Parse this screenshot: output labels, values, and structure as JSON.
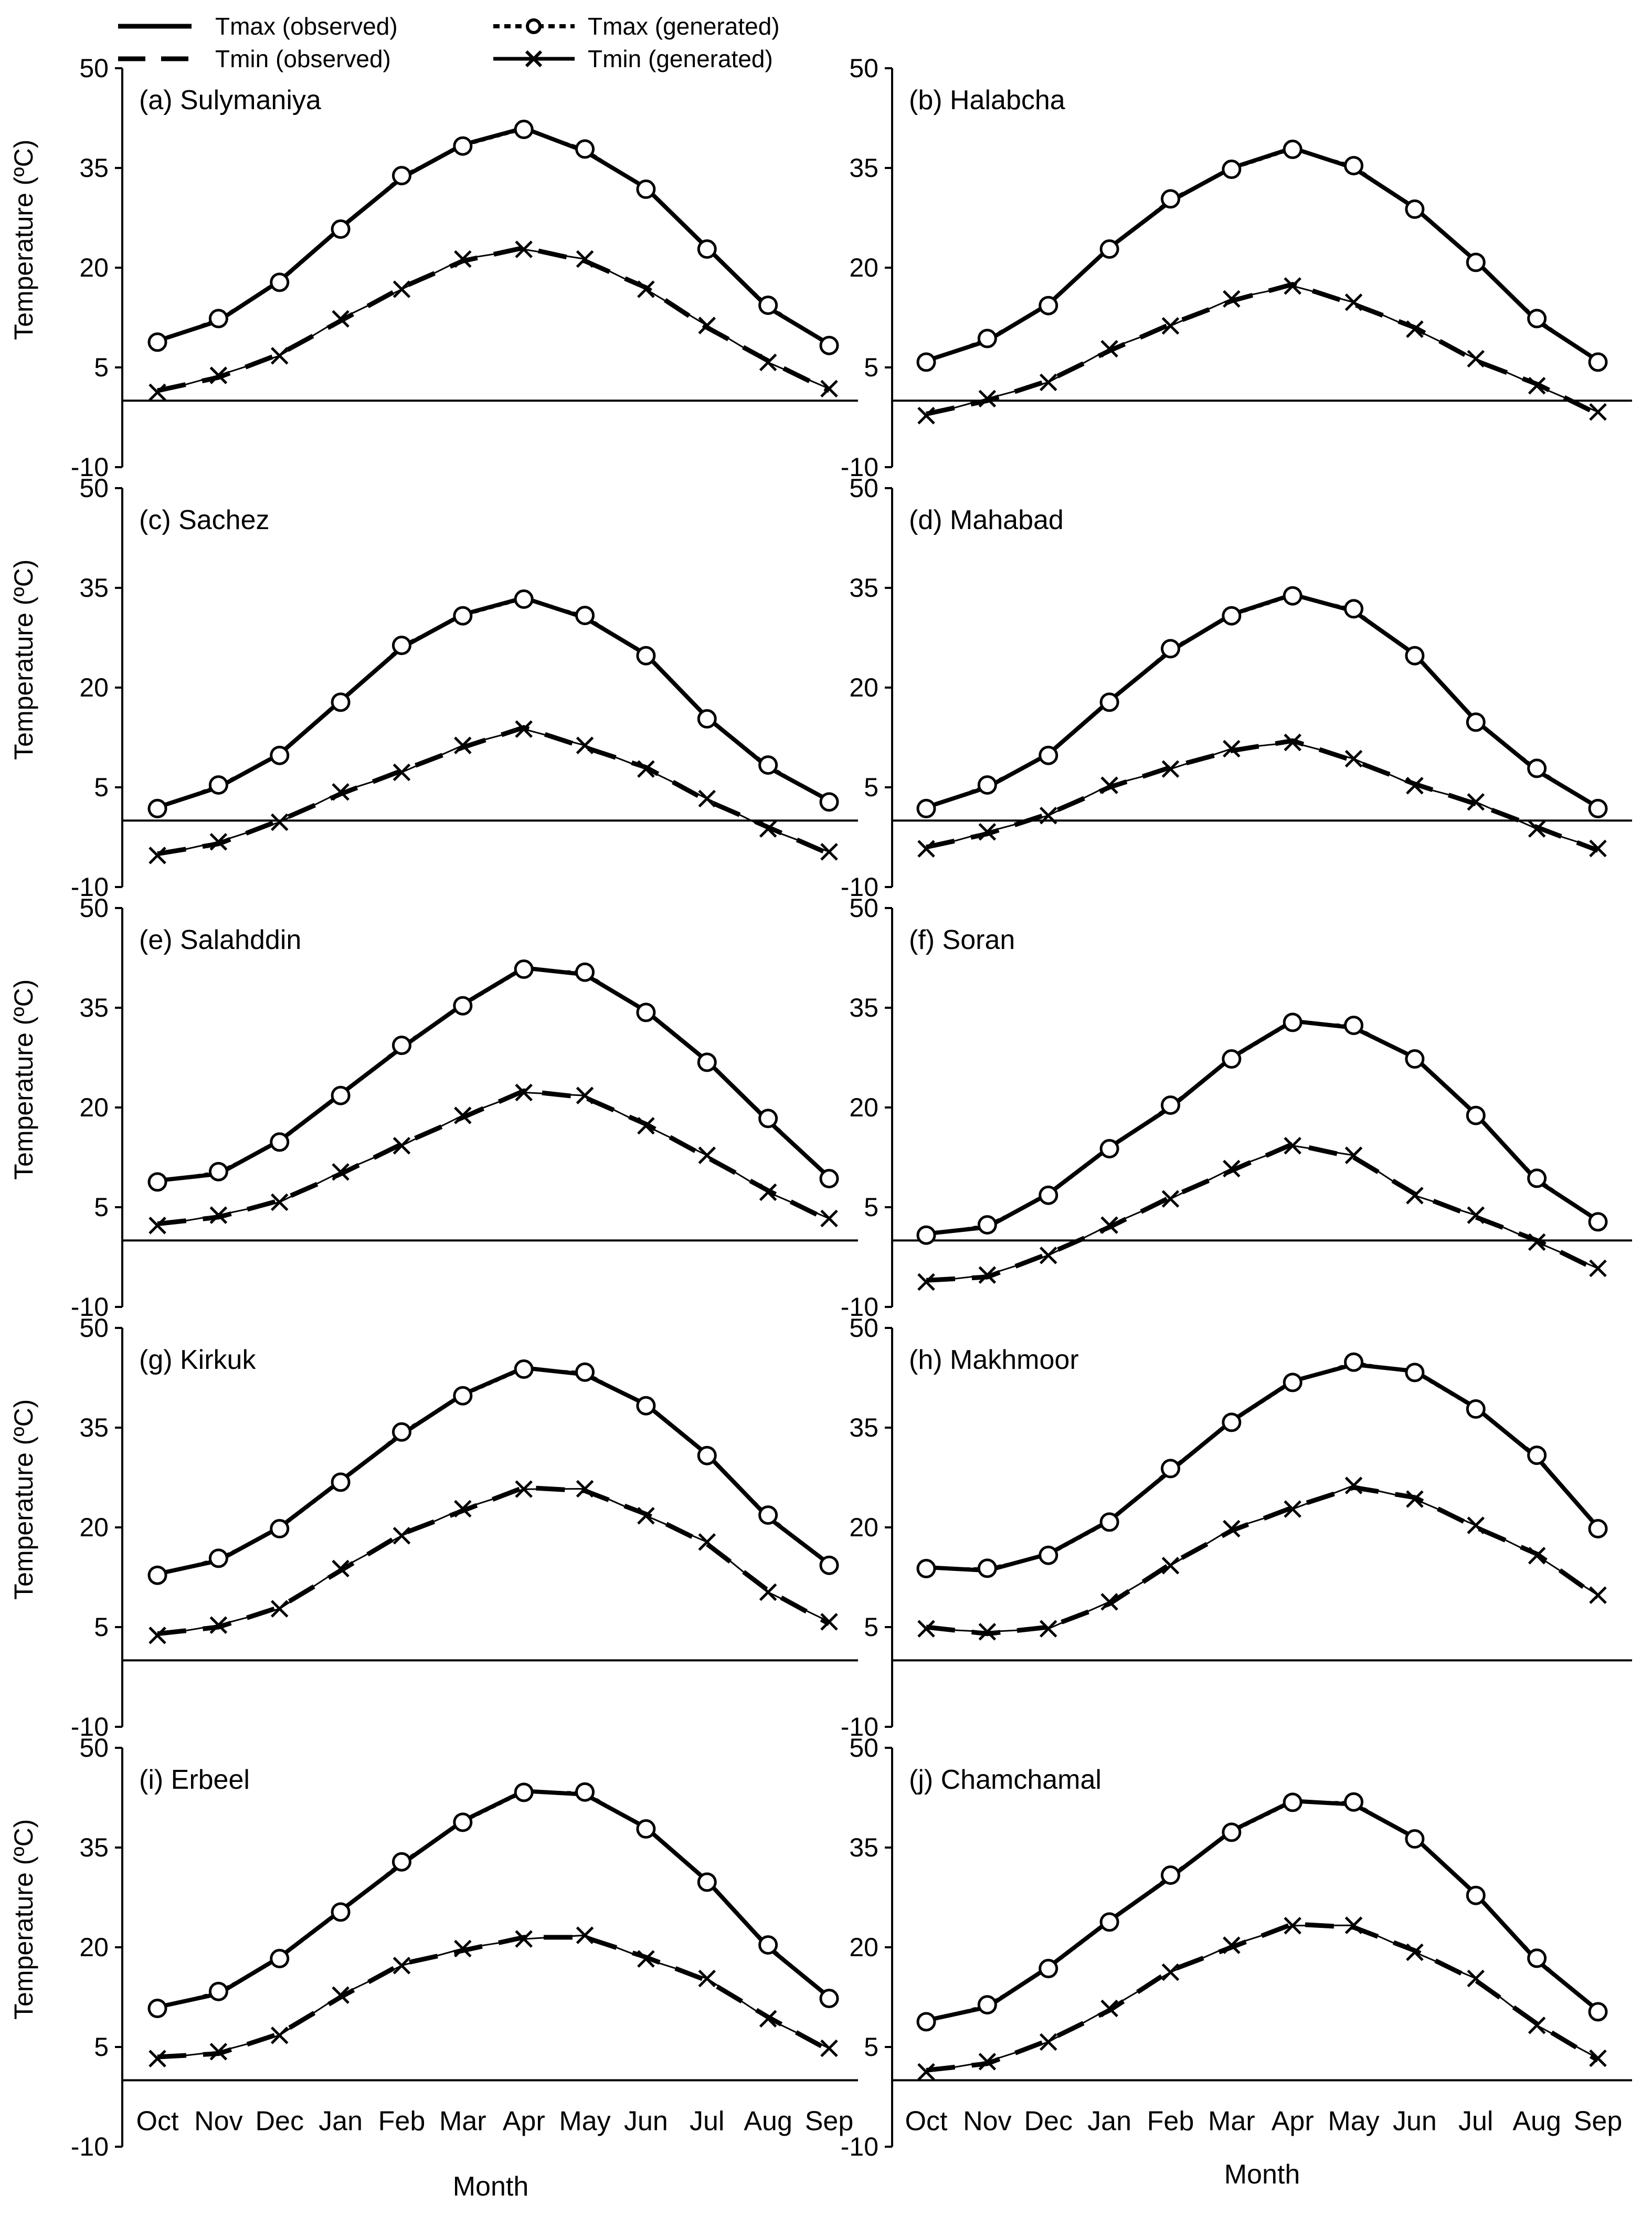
{
  "legend": [
    {
      "label": "Tmax (observed)",
      "style": "solid",
      "marker": "none"
    },
    {
      "label": "Tmax (generated)",
      "style": "dotted",
      "marker": "circle"
    },
    {
      "label": "Tmin (observed)",
      "style": "dashed",
      "marker": "none"
    },
    {
      "label": "Tmin (generated)",
      "style": "solid",
      "marker": "x"
    }
  ],
  "chart_data": {
    "type": "line",
    "categories": [
      "Oct",
      "Nov",
      "Dec",
      "Jan",
      "Feb",
      "Mar",
      "Apr",
      "May",
      "Jun",
      "Jul",
      "Aug",
      "Sep"
    ],
    "xlabel": "Month",
    "ylabel": "Temperature (ºC)",
    "ylim": [
      -10,
      50
    ],
    "yticks": [
      -10,
      5,
      20,
      35,
      50
    ],
    "line_color": "#000000",
    "panels": [
      {
        "title": "(a) Sulymaniya",
        "tmax": [
          9,
          12,
          18,
          26,
          33.5,
          38.5,
          41,
          37.5,
          32,
          23,
          14,
          8.5
        ],
        "tmin": [
          1.5,
          3.5,
          7,
          12,
          17,
          21,
          23,
          21,
          17,
          11,
          6,
          1.5
        ]
      },
      {
        "title": "(b) Halabcha",
        "tmax": [
          6,
          9,
          14.5,
          23,
          30,
          35,
          38,
          35,
          29,
          21,
          12,
          6
        ],
        "tmin": [
          -2,
          0,
          3,
          7.5,
          11.5,
          15,
          17.5,
          14.5,
          11,
          6,
          2.5,
          -2
        ]
      },
      {
        "title": "(c) Sachez",
        "tmax": [
          2,
          5,
          10,
          18,
          26,
          31,
          33.5,
          30.5,
          25,
          15.5,
          8,
          3
        ],
        "tmin": [
          -5,
          -3.5,
          0,
          4,
          7.5,
          11,
          14,
          11,
          8,
          3,
          -1,
          -5
        ]
      },
      {
        "title": "(d) Mahabad",
        "tmax": [
          2,
          5,
          10,
          18,
          25.5,
          31,
          34,
          31.5,
          25,
          15,
          7.5,
          2
        ],
        "tmin": [
          -4,
          -2,
          1,
          5,
          8,
          10.5,
          12,
          9,
          5.5,
          2.5,
          -1,
          -4.5
        ]
      },
      {
        "title": "(e) Salahddin",
        "tmax": [
          9,
          10,
          15,
          22,
          29,
          35.5,
          41,
          40,
          34.5,
          27,
          18,
          9.5
        ],
        "tmin": [
          2.5,
          3.5,
          6,
          10,
          14.5,
          18.5,
          22.5,
          21.5,
          17.5,
          12.5,
          7.5,
          3
        ]
      },
      {
        "title": "(f) Soran",
        "tmax": [
          1,
          2,
          7,
          14,
          20,
          27.5,
          33,
          32,
          27.5,
          19,
          9,
          3
        ],
        "tmin": [
          -6,
          -5.5,
          -2,
          2,
          6.5,
          10.5,
          14.5,
          12.5,
          7,
          3.5,
          0,
          -4.5
        ]
      },
      {
        "title": "(g) Kirkuk",
        "tmax": [
          13,
          15,
          20,
          27,
          34,
          40,
          44,
          43,
          38.5,
          31,
          21.5,
          14.5
        ],
        "tmin": [
          4,
          5,
          8,
          13.5,
          19,
          22.5,
          26,
          25.5,
          22,
          17.5,
          10.5,
          5.5
        ]
      },
      {
        "title": "(h) Makhmoor",
        "tmax": [
          14,
          13.5,
          16,
          21,
          28.5,
          36,
          42,
          44.5,
          43.5,
          38,
          30.5,
          20
        ],
        "tmin": [
          5,
          4,
          5,
          8.5,
          14.5,
          19.5,
          23,
          26,
          24.5,
          20,
          16,
          9.5
        ]
      },
      {
        "title": "(i) Erbeel",
        "tmax": [
          11,
          13,
          18.5,
          25.5,
          32.5,
          39,
          43.5,
          43,
          38,
          30,
          20,
          12.5
        ],
        "tmin": [
          3.5,
          4,
          7,
          12.5,
          17.5,
          19.5,
          21.5,
          21.5,
          18.5,
          15,
          9.5,
          4.5
        ]
      },
      {
        "title": "(j) Chamchamal",
        "tmax": [
          9,
          11,
          17,
          24,
          30.5,
          37.5,
          42,
          41.5,
          36.5,
          28,
          18,
          10.5
        ],
        "tmin": [
          1.5,
          2.5,
          6,
          10.5,
          16.5,
          20,
          23.5,
          23,
          19.5,
          15,
          8.5,
          3
        ]
      }
    ]
  }
}
